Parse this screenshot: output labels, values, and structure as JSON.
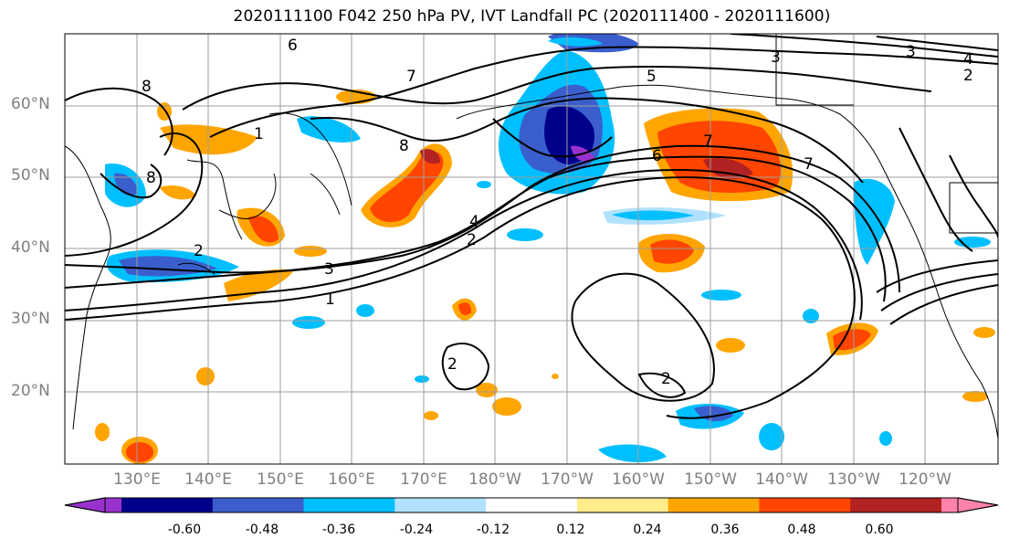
{
  "title": "2020111100 F042 250 hPa PV, IVT Landfall PC (2020111400 - 2020111600)",
  "map": {
    "lat_labels": [
      "60°N",
      "50°N",
      "40°N",
      "30°N",
      "20°N"
    ],
    "lon_labels": [
      "130°E",
      "140°E",
      "150°E",
      "160°E",
      "170°E",
      "180°W",
      "170°W",
      "160°W",
      "150°W",
      "140°W",
      "130°W",
      "120°W"
    ],
    "contour_labels": [
      "1",
      "2",
      "3",
      "4",
      "5",
      "6",
      "7",
      "8"
    ],
    "gridline_color": "#9e9e9e"
  },
  "colorbar": {
    "tick_labels": [
      "-0.60",
      "-0.48",
      "-0.36",
      "-0.24",
      "-0.12",
      "0.12",
      "0.24",
      "0.36",
      "0.48",
      "0.60"
    ],
    "colors": [
      "#9932cc",
      "#00008b",
      "#3a5fcd",
      "#00bfff",
      "#b0e2ff",
      "#ffffff",
      "#ffec8b",
      "#ffa500",
      "#ff4500",
      "#b22222",
      "#ff82ab"
    ]
  }
}
